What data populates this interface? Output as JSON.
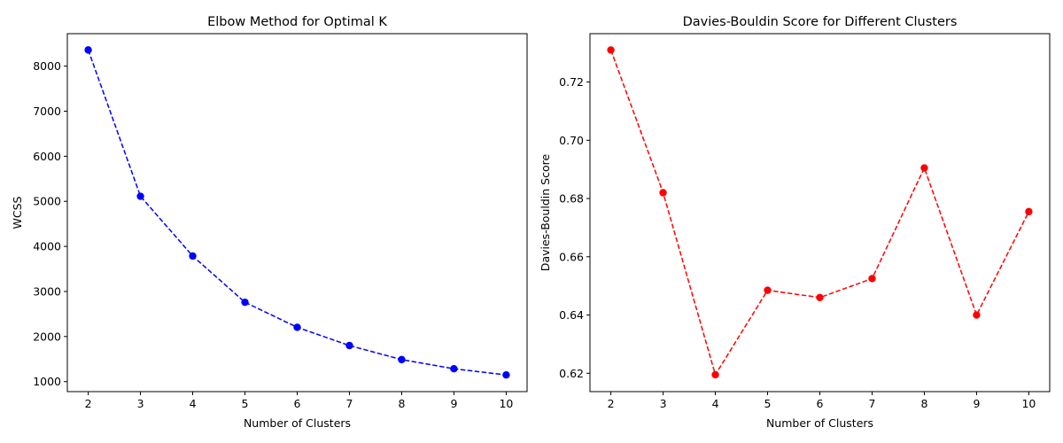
{
  "chart_data": [
    {
      "type": "line",
      "title": "Elbow Method for Optimal K",
      "xlabel": "Number of Clusters",
      "ylabel": "WCSS",
      "x": [
        2,
        3,
        4,
        5,
        6,
        7,
        8,
        9,
        10
      ],
      "xlim": [
        1.6,
        10.4
      ],
      "ylim": [
        778,
        8720
      ],
      "xticks": [
        2,
        3,
        4,
        5,
        6,
        7,
        8,
        9,
        10
      ],
      "yticks": [
        1000,
        2000,
        3000,
        4000,
        5000,
        6000,
        7000,
        8000
      ],
      "grid": false,
      "series": [
        {
          "values": [
            8359,
            5112,
            3786,
            2760,
            2205,
            1800,
            1488,
            1285,
            1148
          ],
          "color": "#0000ff",
          "line_style": "dashed",
          "marker": "circle"
        }
      ]
    },
    {
      "type": "line",
      "title": "Davies-Bouldin Score for Different Clusters",
      "xlabel": "Number of Clusters",
      "ylabel": "Davies-Bouldin Score",
      "x": [
        2,
        3,
        4,
        5,
        6,
        7,
        8,
        9,
        10
      ],
      "xlim": [
        1.6,
        10.4
      ],
      "ylim": [
        0.6137,
        0.7366
      ],
      "xticks": [
        2,
        3,
        4,
        5,
        6,
        7,
        8,
        9,
        10
      ],
      "yticks": [
        0.62,
        0.64,
        0.66,
        0.68,
        0.7,
        0.72
      ],
      "ytick_decimals": 2,
      "grid": false,
      "series": [
        {
          "values": [
            0.731,
            0.682,
            0.6195,
            0.6485,
            0.646,
            0.6525,
            0.6905,
            0.64,
            0.6755
          ],
          "color": "#ff0000",
          "line_style": "dashed",
          "marker": "circle"
        }
      ]
    }
  ]
}
